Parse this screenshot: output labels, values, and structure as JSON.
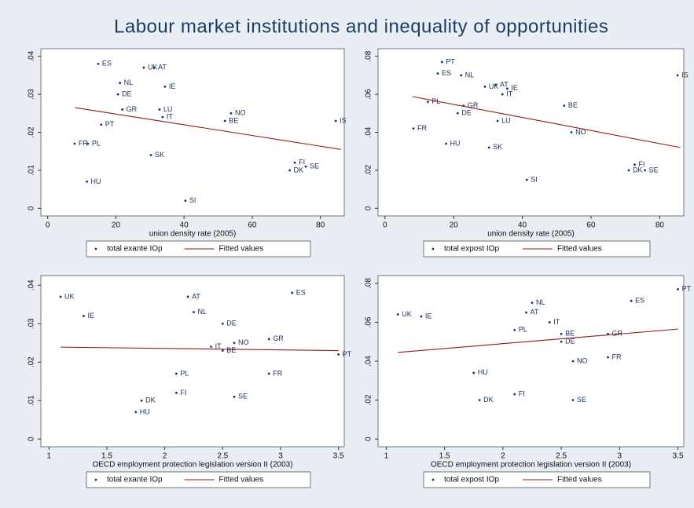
{
  "title": "Labour market institutions and inequality of opportunities",
  "chart_data": [
    {
      "type": "scatter",
      "xlabel": "union density rate (2005)",
      "xlim": [
        -2,
        87
      ],
      "ylim": [
        -0.002,
        0.042
      ],
      "xticks": [
        0,
        20,
        40,
        60,
        80
      ],
      "yticks": [
        0,
        {
          "value": 0.01,
          "label": ".01"
        },
        {
          "value": 0.02,
          "label": ".02"
        },
        {
          "value": 0.03,
          "label": ".03"
        },
        {
          "value": 0.04,
          "label": ".04"
        }
      ],
      "series": [
        {
          "name": "total exante IOp",
          "color": "#1a2f6e",
          "labels": [
            "ES",
            "UK",
            "AT",
            "NL",
            "IE",
            "DE",
            "GR",
            "LU",
            "IT",
            "NO",
            "BE",
            "IS",
            "PT",
            "FR",
            "PL",
            "SK",
            "FI",
            "SE",
            "DK",
            "HU",
            "SI"
          ],
          "x": [
            14.8,
            28.2,
            31.2,
            21.2,
            34.4,
            20.6,
            21.9,
            32.8,
            33.7,
            53.8,
            52,
            84.5,
            15.7,
            7.9,
            11.8,
            30.3,
            72.5,
            75.7,
            71,
            11.5,
            40.4
          ],
          "values": [
            0.038,
            0.037,
            0.037,
            0.033,
            0.032,
            0.03,
            0.026,
            0.026,
            0.024,
            0.025,
            0.023,
            0.023,
            0.022,
            0.017,
            0.017,
            0.014,
            0.012,
            0.011,
            0.01,
            0.007,
            0.002
          ]
        },
        {
          "name": "Fitted values",
          "color": "#8b1c1c",
          "x": [
            8,
            86
          ],
          "values": [
            0.0265,
            0.0155
          ]
        }
      ]
    },
    {
      "type": "scatter",
      "xlabel": "union density rate (2005)",
      "xlim": [
        -2,
        87
      ],
      "ylim": [
        -0.004,
        0.084
      ],
      "xticks": [
        0,
        20,
        40,
        60,
        80
      ],
      "yticks": [
        0,
        {
          "value": 0.02,
          "label": ".02"
        },
        {
          "value": 0.04,
          "label": ".04"
        },
        {
          "value": 0.06,
          "label": ".06"
        },
        {
          "value": 0.08,
          "label": ".08"
        }
      ],
      "series": [
        {
          "name": "total expost IOp",
          "color": "#1a2f6e",
          "labels": [
            "PT",
            "ES",
            "NL",
            "UK",
            "AT",
            "IE",
            "IT",
            "IS",
            "PL",
            "GR",
            "BE",
            "DE",
            "LU",
            "FR",
            "NO",
            "HU",
            "SK",
            "FI",
            "DK",
            "SE",
            "SI"
          ],
          "x": [
            16.6,
            15.4,
            22.2,
            29.1,
            32.3,
            35.6,
            34.2,
            85.2,
            12.5,
            22.9,
            52.2,
            21.2,
            32.8,
            8.3,
            54.3,
            17.8,
            30.3,
            72.7,
            71,
            75.7,
            41.3
          ],
          "values": [
            0.077,
            0.071,
            0.07,
            0.064,
            0.065,
            0.063,
            0.06,
            0.07,
            0.056,
            0.054,
            0.054,
            0.05,
            0.046,
            0.042,
            0.04,
            0.034,
            0.032,
            0.023,
            0.02,
            0.02,
            0.015
          ]
        },
        {
          "name": "Fitted values",
          "color": "#8b1c1c",
          "x": [
            8,
            86
          ],
          "values": [
            0.0588,
            0.032
          ]
        }
      ]
    },
    {
      "type": "scatter",
      "xlabel": "OECD employment protection legislation version II (2003)",
      "xlim": [
        0.93,
        3.55
      ],
      "ylim": [
        -0.002,
        0.0425
      ],
      "xticks": [
        1,
        1.5,
        2,
        2.5,
        3,
        3.5
      ],
      "yticks": [
        0,
        {
          "value": 0.01,
          "label": ".01"
        },
        {
          "value": 0.02,
          "label": ".02"
        },
        {
          "value": 0.03,
          "label": ".03"
        },
        {
          "value": 0.04,
          "label": ".04"
        }
      ],
      "series": [
        {
          "name": "total exante IOp",
          "color": "#1a2f6e",
          "labels": [
            "UK",
            "IE",
            "AT",
            "ES",
            "NL",
            "DE",
            "GR",
            "NO",
            "IT",
            "BE",
            "PT",
            "PL",
            "FR",
            "FI",
            "SE",
            "DK",
            "HU"
          ],
          "x": [
            1.1,
            1.3,
            2.2,
            3.1,
            2.25,
            2.5,
            2.9,
            2.6,
            2.4,
            2.5,
            3.5,
            2.1,
            2.9,
            2.1,
            2.6,
            1.8,
            1.75
          ],
          "values": [
            0.037,
            0.032,
            0.037,
            0.038,
            0.033,
            0.03,
            0.026,
            0.025,
            0.024,
            0.023,
            0.022,
            0.017,
            0.017,
            0.012,
            0.011,
            0.01,
            0.007
          ]
        },
        {
          "name": "Fitted values",
          "color": "#8b1c1c",
          "x": [
            1.1,
            3.5
          ],
          "values": [
            0.0239,
            0.023
          ]
        }
      ]
    },
    {
      "type": "scatter",
      "xlabel": "OECD employment protection legislation version II (2003)",
      "xlim": [
        0.93,
        3.55
      ],
      "ylim": [
        -0.004,
        0.084
      ],
      "xticks": [
        1,
        1.5,
        2,
        2.5,
        3,
        3.5
      ],
      "yticks": [
        0,
        {
          "value": 0.02,
          "label": ".02"
        },
        {
          "value": 0.04,
          "label": ".04"
        },
        {
          "value": 0.06,
          "label": ".06"
        },
        {
          "value": 0.08,
          "label": ".08"
        }
      ],
      "series": [
        {
          "name": "total expost IOp",
          "color": "#1a2f6e",
          "labels": [
            "PT",
            "ES",
            "NL",
            "AT",
            "UK",
            "IE",
            "IT",
            "PL",
            "BE",
            "GR",
            "DE",
            "HU",
            "NO",
            "FR",
            "FI",
            "DK",
            "SE"
          ],
          "x": [
            3.5,
            3.1,
            2.25,
            2.2,
            1.1,
            1.3,
            2.4,
            2.1,
            2.5,
            2.9,
            2.5,
            1.75,
            2.6,
            2.9,
            2.1,
            1.8,
            2.6
          ],
          "values": [
            0.077,
            0.071,
            0.07,
            0.065,
            0.064,
            0.063,
            0.06,
            0.056,
            0.054,
            0.054,
            0.05,
            0.034,
            0.04,
            0.042,
            0.023,
            0.02,
            0.02
          ]
        },
        {
          "name": "Fitted values",
          "color": "#8b1c1c",
          "x": [
            1.1,
            3.5
          ],
          "values": [
            0.0445,
            0.0565
          ]
        }
      ]
    }
  ]
}
